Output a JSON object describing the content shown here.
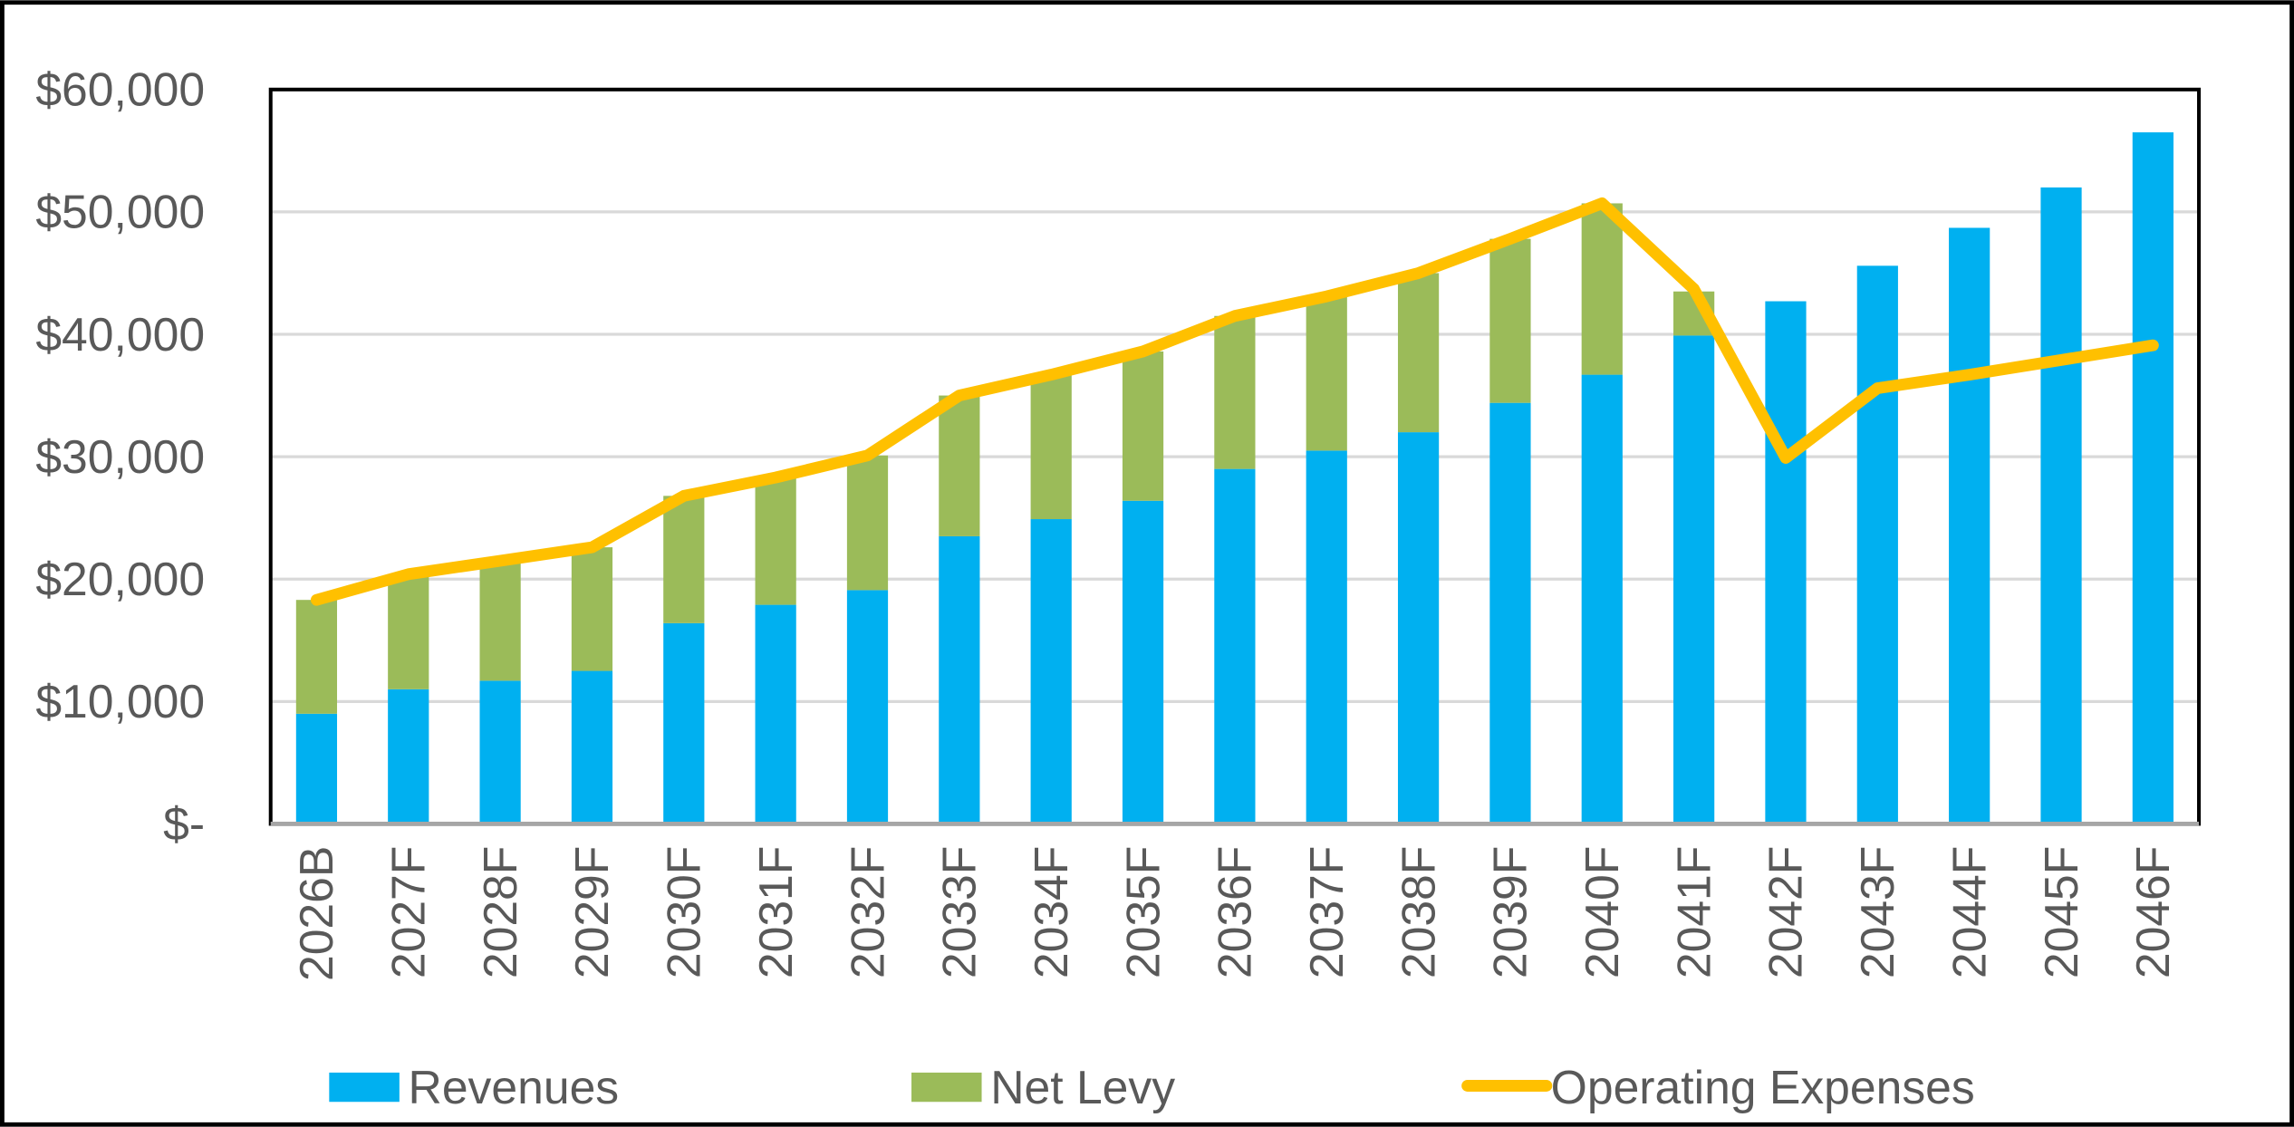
{
  "chart_data": {
    "type": "bar_line",
    "categories": [
      "2026B",
      "2027F",
      "2028F",
      "2029F",
      "2030F",
      "2031F",
      "2032F",
      "2033F",
      "2034F",
      "2035F",
      "2036F",
      "2037F",
      "2038F",
      "2039F",
      "2040F",
      "2041F",
      "2042F",
      "2043F",
      "2044F",
      "2045F",
      "2046F"
    ],
    "series": [
      {
        "name": "Revenues",
        "type": "bar",
        "color": "#00b0f0",
        "values": [
          9000,
          11000,
          11700,
          12500,
          16400,
          17900,
          19100,
          23500,
          24900,
          26400,
          29000,
          30500,
          32000,
          34400,
          36700,
          39900,
          42700,
          45600,
          48700,
          52000,
          56500
        ]
      },
      {
        "name": "Net Levy",
        "type": "bar",
        "color": "#9bbb59",
        "values": [
          9300,
          9400,
          9800,
          10100,
          10400,
          10400,
          11000,
          11500,
          11800,
          12200,
          12500,
          12600,
          13000,
          13400,
          14000,
          3600,
          0,
          0,
          0,
          0,
          0
        ]
      },
      {
        "name": "Operating Expenses",
        "type": "line",
        "color": "#ffc000",
        "values": [
          18300,
          20400,
          21500,
          22600,
          26800,
          28300,
          30100,
          35000,
          36700,
          38600,
          41500,
          43100,
          45000,
          47800,
          50700,
          43700,
          29900,
          35600,
          36700,
          37900,
          39100
        ]
      }
    ],
    "stacked": true,
    "ylim": [
      0,
      60000
    ],
    "yticks": [
      {
        "value": 0,
        "label": "$-"
      },
      {
        "value": 10000,
        "label": "$10,000"
      },
      {
        "value": 20000,
        "label": "$20,000"
      },
      {
        "value": 30000,
        "label": "$30,000"
      },
      {
        "value": 40000,
        "label": "$40,000"
      },
      {
        "value": 50000,
        "label": "$50,000"
      },
      {
        "value": 60000,
        "label": "$60,000"
      }
    ],
    "grid": true,
    "legend": "bottom"
  }
}
